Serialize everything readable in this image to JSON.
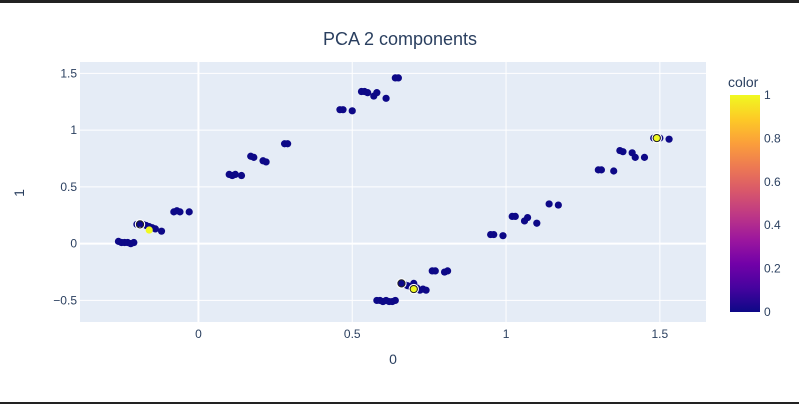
{
  "chart_data": {
    "type": "scatter",
    "title": "PCA 2 components",
    "xlabel": "0",
    "ylabel": "1",
    "xlim": [
      -0.385,
      1.65
    ],
    "ylim": [
      -0.69,
      1.6
    ],
    "x_ticks": [
      0,
      0.5,
      1,
      1.5
    ],
    "x_tick_labels": [
      "0",
      "0.5",
      "1",
      "1.5"
    ],
    "y_ticks": [
      -0.5,
      0,
      0.5,
      1,
      1.5
    ],
    "y_tick_labels": [
      "−0.5",
      "0",
      "0.5",
      "1",
      "1.5"
    ],
    "grid": true,
    "colorscale": "plasma",
    "colorbar": {
      "title": "color",
      "range": [
        0,
        1
      ],
      "ticks": [
        0,
        0.2,
        0.4,
        0.6,
        0.8,
        1
      ],
      "tick_labels": [
        "0",
        "0.2",
        "0.4",
        "0.6",
        "0.8",
        "1"
      ]
    },
    "points": [
      {
        "x": -0.26,
        "y": 0.02,
        "c": 0
      },
      {
        "x": -0.25,
        "y": 0.01,
        "c": 0
      },
      {
        "x": -0.24,
        "y": 0.01,
        "c": 0
      },
      {
        "x": -0.23,
        "y": 0.01,
        "c": 0
      },
      {
        "x": -0.22,
        "y": 0.0,
        "c": 0
      },
      {
        "x": -0.21,
        "y": 0.01,
        "c": 0
      },
      {
        "x": -0.2,
        "y": 0.17,
        "c": 0
      },
      {
        "x": -0.19,
        "y": 0.18,
        "c": 0
      },
      {
        "x": -0.18,
        "y": 0.17,
        "c": 0
      },
      {
        "x": -0.17,
        "y": 0.16,
        "c": 0
      },
      {
        "x": -0.16,
        "y": 0.15,
        "c": 0
      },
      {
        "x": -0.16,
        "y": 0.12,
        "c": 1
      },
      {
        "x": -0.15,
        "y": 0.14,
        "c": 0
      },
      {
        "x": -0.14,
        "y": 0.13,
        "c": 0
      },
      {
        "x": -0.12,
        "y": 0.11,
        "c": 0
      },
      {
        "x": -0.08,
        "y": 0.28,
        "c": 0
      },
      {
        "x": -0.07,
        "y": 0.29,
        "c": 0
      },
      {
        "x": -0.06,
        "y": 0.28,
        "c": 0
      },
      {
        "x": -0.03,
        "y": 0.28,
        "c": 0
      },
      {
        "x": 0.1,
        "y": 0.61,
        "c": 0
      },
      {
        "x": 0.11,
        "y": 0.6,
        "c": 0
      },
      {
        "x": 0.12,
        "y": 0.61,
        "c": 0
      },
      {
        "x": 0.14,
        "y": 0.6,
        "c": 0
      },
      {
        "x": 0.17,
        "y": 0.77,
        "c": 0
      },
      {
        "x": 0.18,
        "y": 0.76,
        "c": 0
      },
      {
        "x": 0.21,
        "y": 0.73,
        "c": 0
      },
      {
        "x": 0.22,
        "y": 0.72,
        "c": 0
      },
      {
        "x": 0.28,
        "y": 0.88,
        "c": 0
      },
      {
        "x": 0.29,
        "y": 0.88,
        "c": 0
      },
      {
        "x": 0.46,
        "y": 1.18,
        "c": 0
      },
      {
        "x": 0.47,
        "y": 1.18,
        "c": 0
      },
      {
        "x": 0.5,
        "y": 1.17,
        "c": 0
      },
      {
        "x": 0.53,
        "y": 1.34,
        "c": 0
      },
      {
        "x": 0.54,
        "y": 1.34,
        "c": 0
      },
      {
        "x": 0.55,
        "y": 1.33,
        "c": 0
      },
      {
        "x": 0.57,
        "y": 1.3,
        "c": 0
      },
      {
        "x": 0.58,
        "y": 1.33,
        "c": 0
      },
      {
        "x": 0.61,
        "y": 1.28,
        "c": 0
      },
      {
        "x": 0.64,
        "y": 1.46,
        "c": 0
      },
      {
        "x": 0.65,
        "y": 1.46,
        "c": 0
      },
      {
        "x": 0.58,
        "y": -0.5,
        "c": 0
      },
      {
        "x": 0.59,
        "y": -0.5,
        "c": 0
      },
      {
        "x": 0.6,
        "y": -0.51,
        "c": 0
      },
      {
        "x": 0.61,
        "y": -0.5,
        "c": 0
      },
      {
        "x": 0.62,
        "y": -0.51,
        "c": 0
      },
      {
        "x": 0.63,
        "y": -0.51,
        "c": 0
      },
      {
        "x": 0.64,
        "y": -0.5,
        "c": 0
      },
      {
        "x": 0.66,
        "y": -0.35,
        "c": 0
      },
      {
        "x": 0.67,
        "y": -0.36,
        "c": 0
      },
      {
        "x": 0.68,
        "y": -0.37,
        "c": 0
      },
      {
        "x": 0.69,
        "y": -0.38,
        "c": 0
      },
      {
        "x": 0.7,
        "y": -0.35,
        "c": 0
      },
      {
        "x": 0.7,
        "y": -0.4,
        "c": 1
      },
      {
        "x": 0.71,
        "y": -0.39,
        "c": 0
      },
      {
        "x": 0.72,
        "y": -0.41,
        "c": 0
      },
      {
        "x": 0.73,
        "y": -0.4,
        "c": 0
      },
      {
        "x": 0.74,
        "y": -0.41,
        "c": 0
      },
      {
        "x": 0.76,
        "y": -0.24,
        "c": 0
      },
      {
        "x": 0.77,
        "y": -0.24,
        "c": 0
      },
      {
        "x": 0.8,
        "y": -0.25,
        "c": 0
      },
      {
        "x": 0.81,
        "y": -0.24,
        "c": 0
      },
      {
        "x": 0.95,
        "y": 0.08,
        "c": 0
      },
      {
        "x": 0.96,
        "y": 0.08,
        "c": 0
      },
      {
        "x": 0.99,
        "y": 0.07,
        "c": 0
      },
      {
        "x": 1.02,
        "y": 0.24,
        "c": 0
      },
      {
        "x": 1.03,
        "y": 0.24,
        "c": 0
      },
      {
        "x": 1.06,
        "y": 0.2,
        "c": 0
      },
      {
        "x": 1.07,
        "y": 0.23,
        "c": 0
      },
      {
        "x": 1.1,
        "y": 0.18,
        "c": 0
      },
      {
        "x": 1.14,
        "y": 0.35,
        "c": 0
      },
      {
        "x": 1.17,
        "y": 0.34,
        "c": 0
      },
      {
        "x": 1.3,
        "y": 0.65,
        "c": 0
      },
      {
        "x": 1.31,
        "y": 0.65,
        "c": 0
      },
      {
        "x": 1.35,
        "y": 0.64,
        "c": 0
      },
      {
        "x": 1.37,
        "y": 0.82,
        "c": 0
      },
      {
        "x": 1.38,
        "y": 0.81,
        "c": 0
      },
      {
        "x": 1.41,
        "y": 0.8,
        "c": 0
      },
      {
        "x": 1.42,
        "y": 0.76,
        "c": 0
      },
      {
        "x": 1.45,
        "y": 0.76,
        "c": 0
      },
      {
        "x": 1.48,
        "y": 0.93,
        "c": 0
      },
      {
        "x": 1.49,
        "y": 0.93,
        "c": 1
      },
      {
        "x": 1.5,
        "y": 0.93,
        "c": 0
      },
      {
        "x": 1.53,
        "y": 0.92,
        "c": 0
      }
    ],
    "highlighted": [
      {
        "x": -0.19,
        "y": 0.17
      },
      {
        "x": 0.66,
        "y": -0.35
      },
      {
        "x": 0.7,
        "y": -0.4
      },
      {
        "x": 1.49,
        "y": 0.93
      }
    ]
  }
}
